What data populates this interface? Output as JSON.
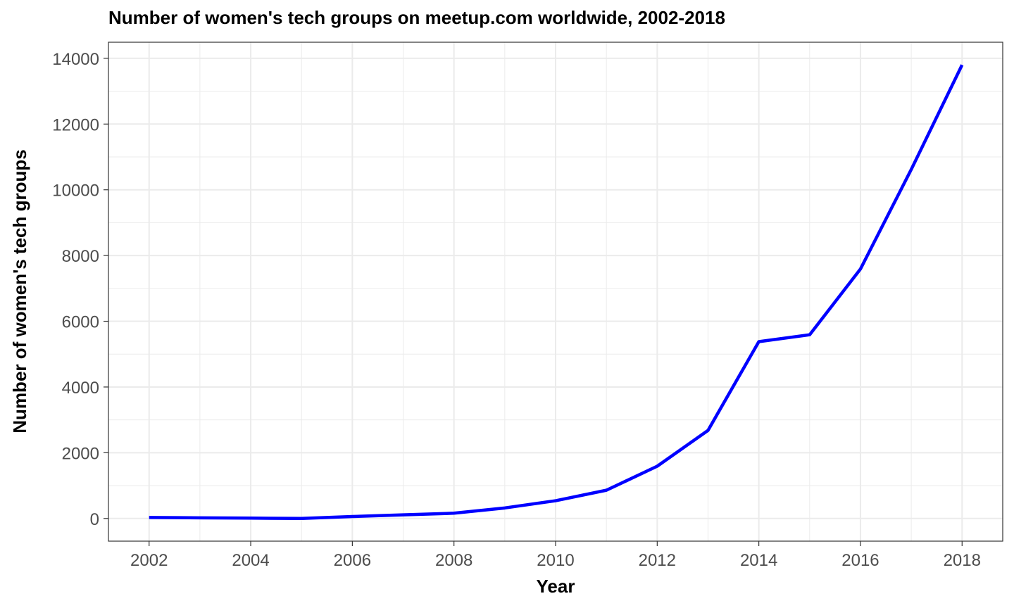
{
  "chart_data": {
    "type": "line",
    "title": "Number of women's tech groups on meetup.com worldwide, 2002-2018",
    "xlabel": "Year",
    "ylabel": "Number of women's tech groups",
    "x": [
      2002,
      2003,
      2004,
      2005,
      2006,
      2007,
      2008,
      2009,
      2010,
      2011,
      2012,
      2013,
      2014,
      2015,
      2016,
      2017,
      2018
    ],
    "series": [
      {
        "values": [
          30,
          20,
          10,
          0,
          60,
          110,
          160,
          320,
          540,
          860,
          1590,
          2680,
          5380,
          5590,
          7590,
          10620,
          13800
        ],
        "color": "#0000ff"
      }
    ],
    "xticks": [
      "2002",
      "2004",
      "2006",
      "2008",
      "2010",
      "2012",
      "2014",
      "2016",
      "2018"
    ],
    "yticks": [
      "0",
      "2000",
      "4000",
      "6000",
      "8000",
      "10000",
      "12000",
      "14000"
    ],
    "xlim": [
      2001.2,
      2018.8
    ],
    "ylim": [
      -690,
      14490
    ],
    "grid": true,
    "legend": "none",
    "colors": {
      "line": "#0000ff",
      "grid": "#ebebeb",
      "panel_border": "#333333",
      "tick_text": "#4d4d4d"
    }
  }
}
